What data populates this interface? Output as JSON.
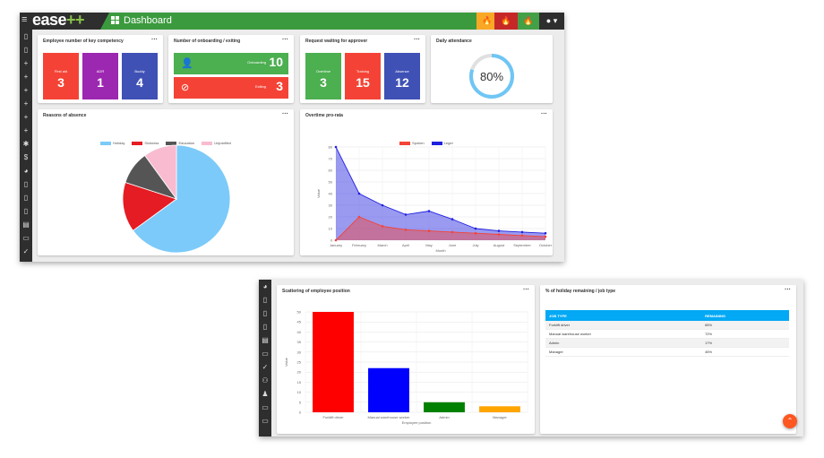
{
  "app": {
    "brand": "ease",
    "brand_suffix": "++",
    "page_title": "Dashboard"
  },
  "toolbar": {
    "buttons": [
      {
        "icon": "flame-icon",
        "color": "#f9a825"
      },
      {
        "icon": "flame-icon",
        "color": "#c62828"
      },
      {
        "icon": "flame-icon",
        "color": "#43a047"
      }
    ]
  },
  "colors": {
    "green": "#3c9a3e",
    "red": "#f44336",
    "purple": "#9c27b0",
    "indigo": "#3f51b5",
    "sky": "#6ec6f5",
    "table_header": "#03a9f4"
  },
  "cards": {
    "competency": {
      "title": "Employee number of key competency",
      "tiles": [
        {
          "label": "First aid",
          "value": "3",
          "color": "#f44336"
        },
        {
          "label": "ADR",
          "value": "1",
          "color": "#9c27b0"
        },
        {
          "label": "Buddy",
          "value": "4",
          "color": "#3f51b5"
        }
      ]
    },
    "onboarding": {
      "title": "Number of onboarding / exiting",
      "onboarding_label": "Onboarding",
      "onboarding_value": "10",
      "exiting_label": "Exiting",
      "exiting_value": "3"
    },
    "approver": {
      "title": "Request waiting for approver",
      "tiles": [
        {
          "label": "Overtime",
          "value": "3",
          "color": "#4caf50"
        },
        {
          "label": "Training",
          "value": "15",
          "color": "#f44336"
        },
        {
          "label": "Absence",
          "value": "12",
          "color": "#3f51b5"
        }
      ]
    },
    "attendance": {
      "title": "Daily attendance",
      "value_text": "80%",
      "value": 0.8
    },
    "absence": {
      "title": "Reasons of absence"
    },
    "overtime": {
      "title": "Overtime pro-rata"
    },
    "scatter": {
      "title": "Scattering of employee position"
    },
    "holiday": {
      "title": "% of holiday remaining / job type",
      "headers": [
        "JOB TYPE",
        "REMAINING"
      ],
      "rows": [
        {
          "job": "Forklift driver",
          "remaining": "65%"
        },
        {
          "job": "Manual warehouse worker",
          "remaining": "72%"
        },
        {
          "job": "Admin",
          "remaining": "17%"
        },
        {
          "job": "Manager",
          "remaining": "45%"
        }
      ]
    }
  },
  "chart_data": [
    {
      "type": "pie",
      "title": "Reasons of absence",
      "categories": [
        "Holiday",
        "Sickness",
        "Education",
        "Unjustified"
      ],
      "values": [
        65,
        15,
        10,
        10
      ],
      "colors": [
        "#7ccaf9",
        "#e51c23",
        "#555555",
        "#f8bbd0"
      ],
      "legend": "top"
    },
    {
      "type": "area",
      "title": "Overtime pro-rata",
      "xlabel": "Month",
      "ylabel": "Value",
      "categories": [
        "January",
        "February",
        "March",
        "April",
        "May",
        "June",
        "July",
        "August",
        "September",
        "October"
      ],
      "ylim": [
        0,
        80
      ],
      "yticks": [
        0,
        10,
        20,
        30,
        40,
        50,
        60,
        70,
        80
      ],
      "series": [
        {
          "name": "Spoken",
          "color": "#f44336",
          "values": [
            0,
            20,
            12,
            9,
            8,
            7,
            6,
            5,
            4,
            3
          ]
        },
        {
          "name": "Leger",
          "color": "#2020e0",
          "values": [
            80,
            40,
            30,
            22,
            25,
            18,
            10,
            8,
            7,
            6
          ]
        }
      ],
      "grid": true,
      "legend": "top"
    },
    {
      "type": "bar",
      "title": "Scattering of employee position",
      "xlabel": "Employee position",
      "ylabel": "Value",
      "categories": [
        "Forklift driver",
        "Manual warehouse worker",
        "Admin",
        "Manager"
      ],
      "values": [
        50,
        22,
        5,
        3
      ],
      "colors": [
        "#ff0000",
        "#0000ff",
        "#008000",
        "#ffa500"
      ],
      "ylim": [
        0,
        50
      ],
      "yticks": [
        0,
        5,
        10,
        15,
        20,
        25,
        30,
        35,
        40,
        45,
        50
      ],
      "grid": true
    }
  ],
  "sidebar_icons_a": [
    "doc-icon",
    "doc-icon",
    "plus-icon",
    "plus-icon",
    "plus-icon",
    "plus-icon",
    "plus-icon",
    "plus-icon",
    "gear-icon",
    "dollar-icon",
    "pie-icon",
    "doc-icon",
    "doc-icon",
    "doc-icon",
    "calendar-icon",
    "folder-icon",
    "check-icon"
  ],
  "sidebar_icons_b": [
    "pie-icon",
    "doc-icon",
    "doc-icon",
    "doc-icon",
    "calendar-icon",
    "folder-icon",
    "check-icon",
    "group-icon",
    "person-icon",
    "folder-icon",
    "folder-icon"
  ]
}
